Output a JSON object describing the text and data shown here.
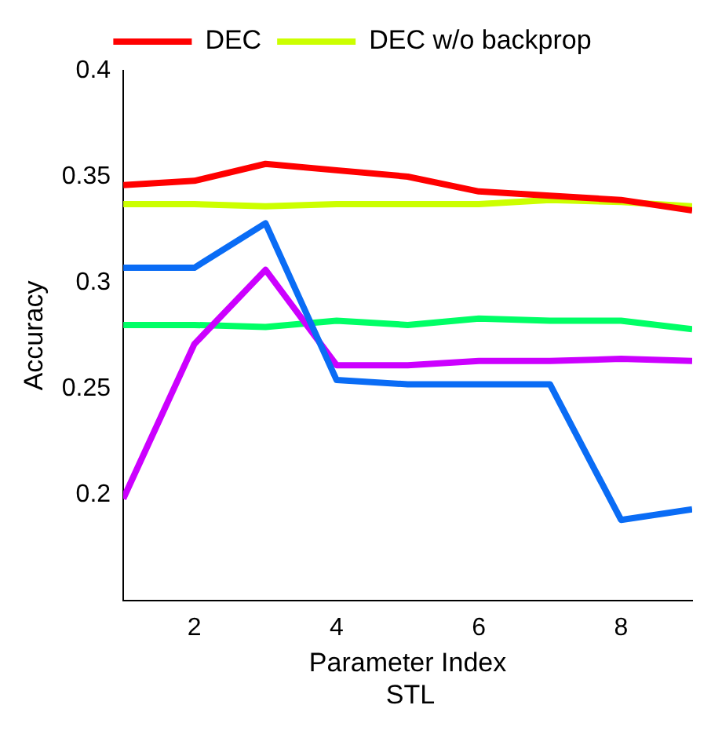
{
  "chart_data": {
    "type": "line",
    "xlabel": "Parameter Index",
    "ylabel": "Accuracy",
    "annotations": [
      "STL"
    ],
    "x": [
      1,
      2,
      3,
      4,
      5,
      6,
      7,
      8,
      9
    ],
    "xlim": [
      1,
      9
    ],
    "xticks": [
      2,
      4,
      6,
      8
    ],
    "ylim": [
      0.15,
      0.4
    ],
    "yticks": [
      0.2,
      0.25,
      0.3,
      0.35,
      0.4
    ],
    "grid": false,
    "legend": "top",
    "marker": "none",
    "line_style": "solid",
    "series": [
      {
        "name": "DEC",
        "color": "#ff0000",
        "values": [
          0.346,
          0.348,
          0.356,
          0.353,
          0.35,
          0.343,
          0.341,
          0.339,
          0.334
        ]
      },
      {
        "name": "DEC w/o backprop",
        "color": "#ccff00",
        "values": [
          0.337,
          0.337,
          0.336,
          0.337,
          0.337,
          0.337,
          0.339,
          0.338,
          0.336
        ]
      },
      {
        "color": "#0a6cf5",
        "values": [
          0.307,
          0.307,
          0.328,
          0.254,
          0.252,
          0.252,
          0.252,
          0.188,
          0.193
        ]
      },
      {
        "color": "#cc00ff",
        "values": [
          0.198,
          0.271,
          0.306,
          0.261,
          0.261,
          0.263,
          0.263,
          0.264,
          0.263
        ]
      },
      {
        "color": "#00ff66",
        "values": [
          0.28,
          0.28,
          0.279,
          0.282,
          0.28,
          0.283,
          0.282,
          0.282,
          0.278
        ]
      }
    ]
  }
}
